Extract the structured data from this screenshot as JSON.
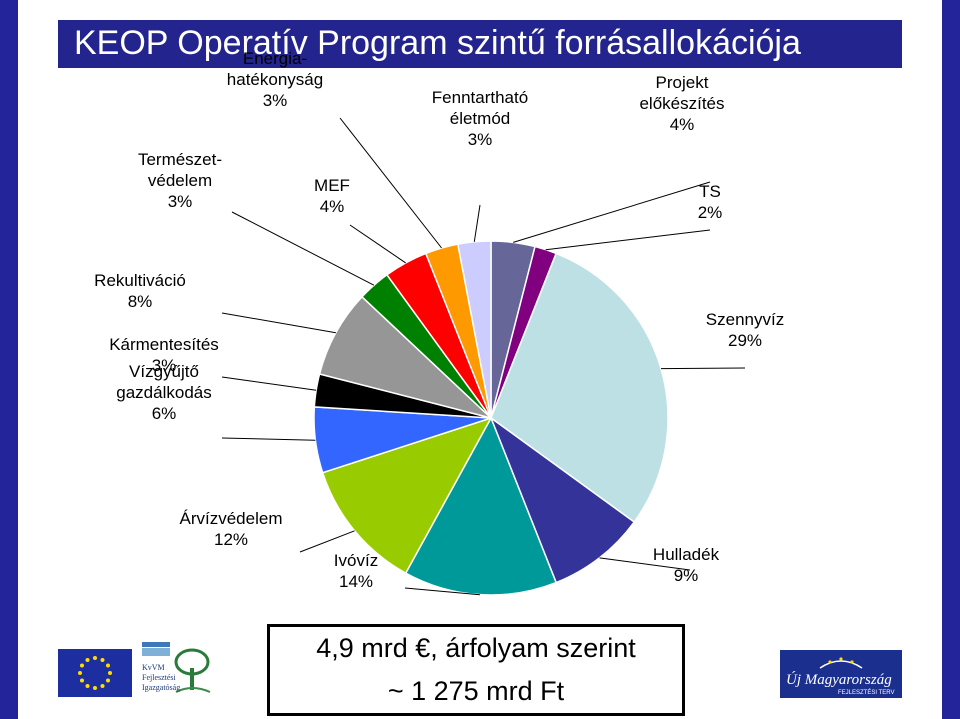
{
  "header": {
    "title": "KEOP Operatív Program szintű forrásallokációja"
  },
  "chart_data": {
    "type": "pie",
    "start_angle": "12 o'clock",
    "direction": "clockwise",
    "slices": [
      {
        "label_lines": [
          "Projekt",
          "előkészítés"
        ],
        "pct_label": "4%",
        "value": 4,
        "color": "#666699"
      },
      {
        "label_lines": [
          "TS"
        ],
        "pct_label": "2%",
        "value": 2,
        "color": "#800080"
      },
      {
        "label_lines": [
          "Szennyvíz"
        ],
        "pct_label": "29%",
        "value": 29,
        "color": "#bde0e4"
      },
      {
        "label_lines": [
          "Hulladék"
        ],
        "pct_label": "9%",
        "value": 9,
        "color": "#333399"
      },
      {
        "label_lines": [
          "Ivóvíz"
        ],
        "pct_label": "14%",
        "value": 14,
        "color": "#009999"
      },
      {
        "label_lines": [
          "Árvízvédelem"
        ],
        "pct_label": "12%",
        "value": 12,
        "color": "#99cc00"
      },
      {
        "label_lines": [
          "Vízgyűjtő",
          "gazdálkodás"
        ],
        "pct_label": "6%",
        "value": 6,
        "color": "#3366ff"
      },
      {
        "label_lines": [
          "Kármentesítés"
        ],
        "pct_label": "3%",
        "value": 3,
        "color": "#000000"
      },
      {
        "label_lines": [
          "Rekultiváció"
        ],
        "pct_label": "8%",
        "value": 8,
        "color": "#969696"
      },
      {
        "label_lines": [
          "Természet-",
          "védelem"
        ],
        "pct_label": "3%",
        "value": 3,
        "color": "#008000"
      },
      {
        "label_lines": [
          "MEF"
        ],
        "pct_label": "4%",
        "value": 4,
        "color": "#ff0000"
      },
      {
        "label_lines": [
          "Energia-",
          "hatékonyság"
        ],
        "pct_label": "3%",
        "value": 3,
        "color": "#ff9900"
      },
      {
        "label_lines": [
          "Fenntartható",
          "életmód"
        ],
        "pct_label": "3%",
        "value": 3,
        "color": "#ccccff"
      }
    ]
  },
  "footer": {
    "line1": "4,9 mrd €, árfolyam szerint",
    "line2": "~ 1 275 mrd Ft"
  },
  "logos": {
    "kvvm_lines": [
      "KvVM",
      "Fejlesztési",
      "Igazgatóság"
    ],
    "um_text": "Új Magyarország",
    "um_sub": "FEJLESZTÉSI TERV"
  }
}
